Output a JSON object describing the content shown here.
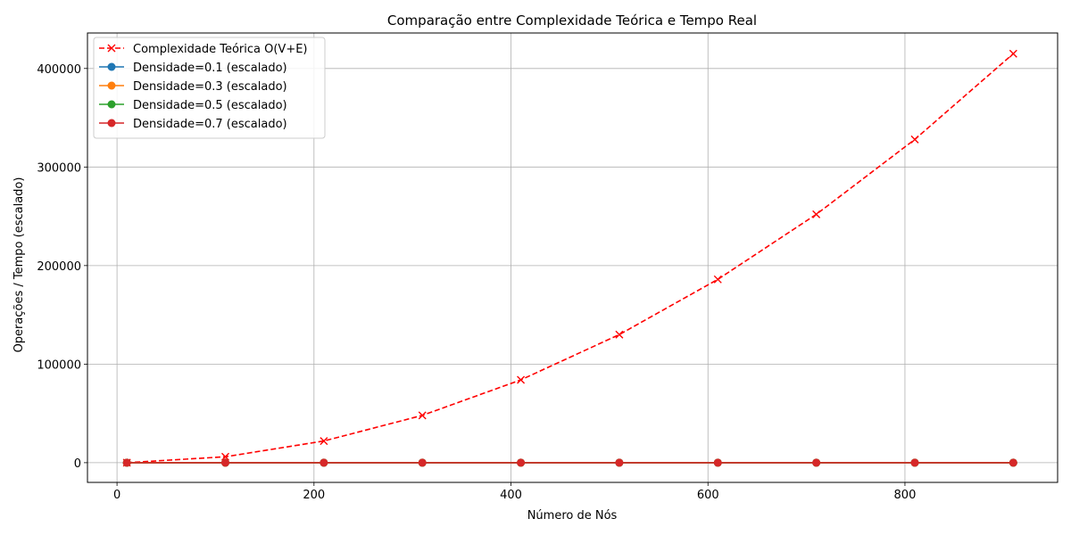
{
  "chart_data": {
    "type": "line",
    "title": "Comparação entre Complexidade Teórica e Tempo Real",
    "xlabel": "Número de Nós",
    "ylabel": "Operações / Tempo (escalado)",
    "xlim": [
      -30,
      955
    ],
    "ylim": [
      -20000,
      436000
    ],
    "xticks": [
      0,
      200,
      400,
      600,
      800
    ],
    "yticks": [
      0,
      100000,
      200000,
      300000,
      400000
    ],
    "grid": true,
    "legend_position": "top-left",
    "x": [
      10,
      110,
      210,
      310,
      410,
      510,
      610,
      710,
      810,
      910
    ],
    "series": [
      {
        "name": "Complexidade Teórica O(V+E)",
        "color": "#ff0000",
        "style": "dashed",
        "marker": "x",
        "values": [
          0,
          6000,
          22000,
          48000,
          84000,
          130000,
          186000,
          252000,
          328000,
          415000
        ]
      },
      {
        "name": "Densidade=0.1 (escalado)",
        "color": "#1f77b4",
        "style": "solid",
        "marker": "o",
        "values": [
          0,
          0,
          0,
          0,
          0,
          0,
          0,
          0,
          0,
          0
        ]
      },
      {
        "name": "Densidade=0.3 (escalado)",
        "color": "#ff7f0e",
        "style": "solid",
        "marker": "o",
        "values": [
          0,
          0,
          0,
          0,
          0,
          0,
          0,
          0,
          0,
          0
        ]
      },
      {
        "name": "Densidade=0.5 (escalado)",
        "color": "#2ca02c",
        "style": "solid",
        "marker": "o",
        "values": [
          0,
          0,
          0,
          0,
          0,
          0,
          0,
          0,
          0,
          0
        ]
      },
      {
        "name": "Densidade=0.7 (escalado)",
        "color": "#d62728",
        "style": "solid",
        "marker": "o",
        "values": [
          0,
          0,
          0,
          0,
          0,
          0,
          0,
          0,
          0,
          0
        ]
      }
    ]
  }
}
